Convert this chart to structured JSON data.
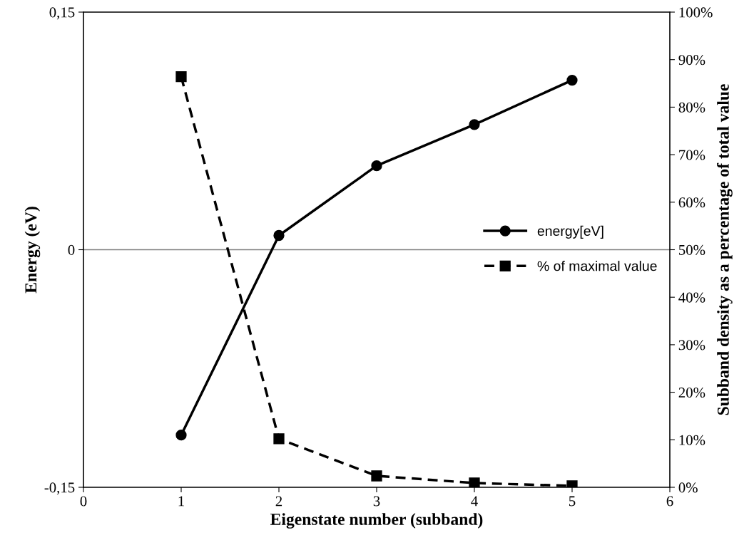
{
  "chart_data": {
    "type": "line",
    "xlabel": "Eigenstate number (subband)",
    "ylabel": "Energy (eV)",
    "y2label": "Subband density as a percentage of total value",
    "x": [
      1,
      2,
      3,
      4,
      5
    ],
    "xlim": [
      0,
      6
    ],
    "xticks": [
      0,
      1,
      2,
      3,
      4,
      5,
      6
    ],
    "ylim": [
      -0.15,
      0.15
    ],
    "yticks": [
      {
        "value": -0.15,
        "label": "-0,15"
      },
      {
        "value": 0,
        "label": "0"
      },
      {
        "value": 0.15,
        "label": "0,15"
      }
    ],
    "y2lim": [
      0,
      100
    ],
    "y2ticks": [
      {
        "value": 0,
        "label": "0%"
      },
      {
        "value": 10,
        "label": "10%"
      },
      {
        "value": 20,
        "label": "20%"
      },
      {
        "value": 30,
        "label": "30%"
      },
      {
        "value": 40,
        "label": "40%"
      },
      {
        "value": 50,
        "label": "50%"
      },
      {
        "value": 60,
        "label": "60%"
      },
      {
        "value": 70,
        "label": "70%"
      },
      {
        "value": 80,
        "label": "80%"
      },
      {
        "value": 90,
        "label": "90%"
      },
      {
        "value": 100,
        "label": "100%"
      }
    ],
    "series": [
      {
        "name": "energy[eV]",
        "color": "#000000",
        "values": [
          -0.117,
          0.009,
          0.053,
          0.079,
          0.107
        ],
        "marker": "circle",
        "line_style": "solid"
      },
      {
        "name": "% of maximal value",
        "color": "#000000",
        "values": [
          86.4,
          10.2,
          2.4,
          0.9,
          0.3
        ],
        "axis": "y2",
        "marker": "square",
        "line_style": "dashed"
      }
    ],
    "ref_lines": [
      {
        "axis": "y",
        "value": 0,
        "color": "#808080"
      }
    ],
    "legend": "center right",
    "grid": false
  }
}
